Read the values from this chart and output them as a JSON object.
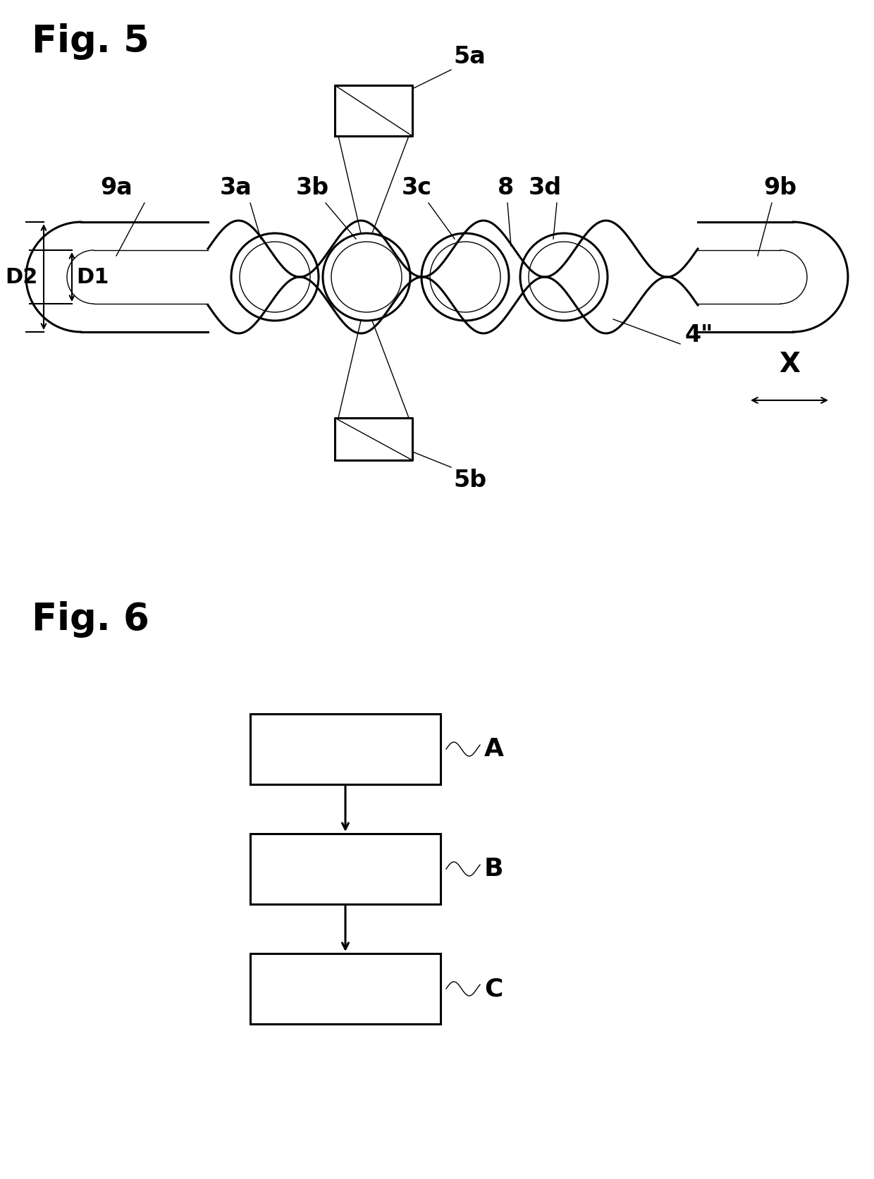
{
  "fig5_title": "Fig. 5",
  "fig6_title": "Fig. 6",
  "bg_color": "#ffffff",
  "line_color": "#000000",
  "fig5_label_5a": "5a",
  "fig5_label_5b": "5b",
  "fig5_label_9a": "9a",
  "fig5_label_9b": "9b",
  "fig5_label_3a": "3a",
  "fig5_label_3b": "3b",
  "fig5_label_3c": "3c",
  "fig5_label_3d": "3d",
  "fig5_label_8": "8",
  "fig5_label_4pp": "4\"",
  "fig5_label_D1": "D1",
  "fig5_label_D2": "D2",
  "fig5_label_X": "X",
  "fig6_label_A": "A",
  "fig6_label_B": "B",
  "fig6_label_C": "C"
}
